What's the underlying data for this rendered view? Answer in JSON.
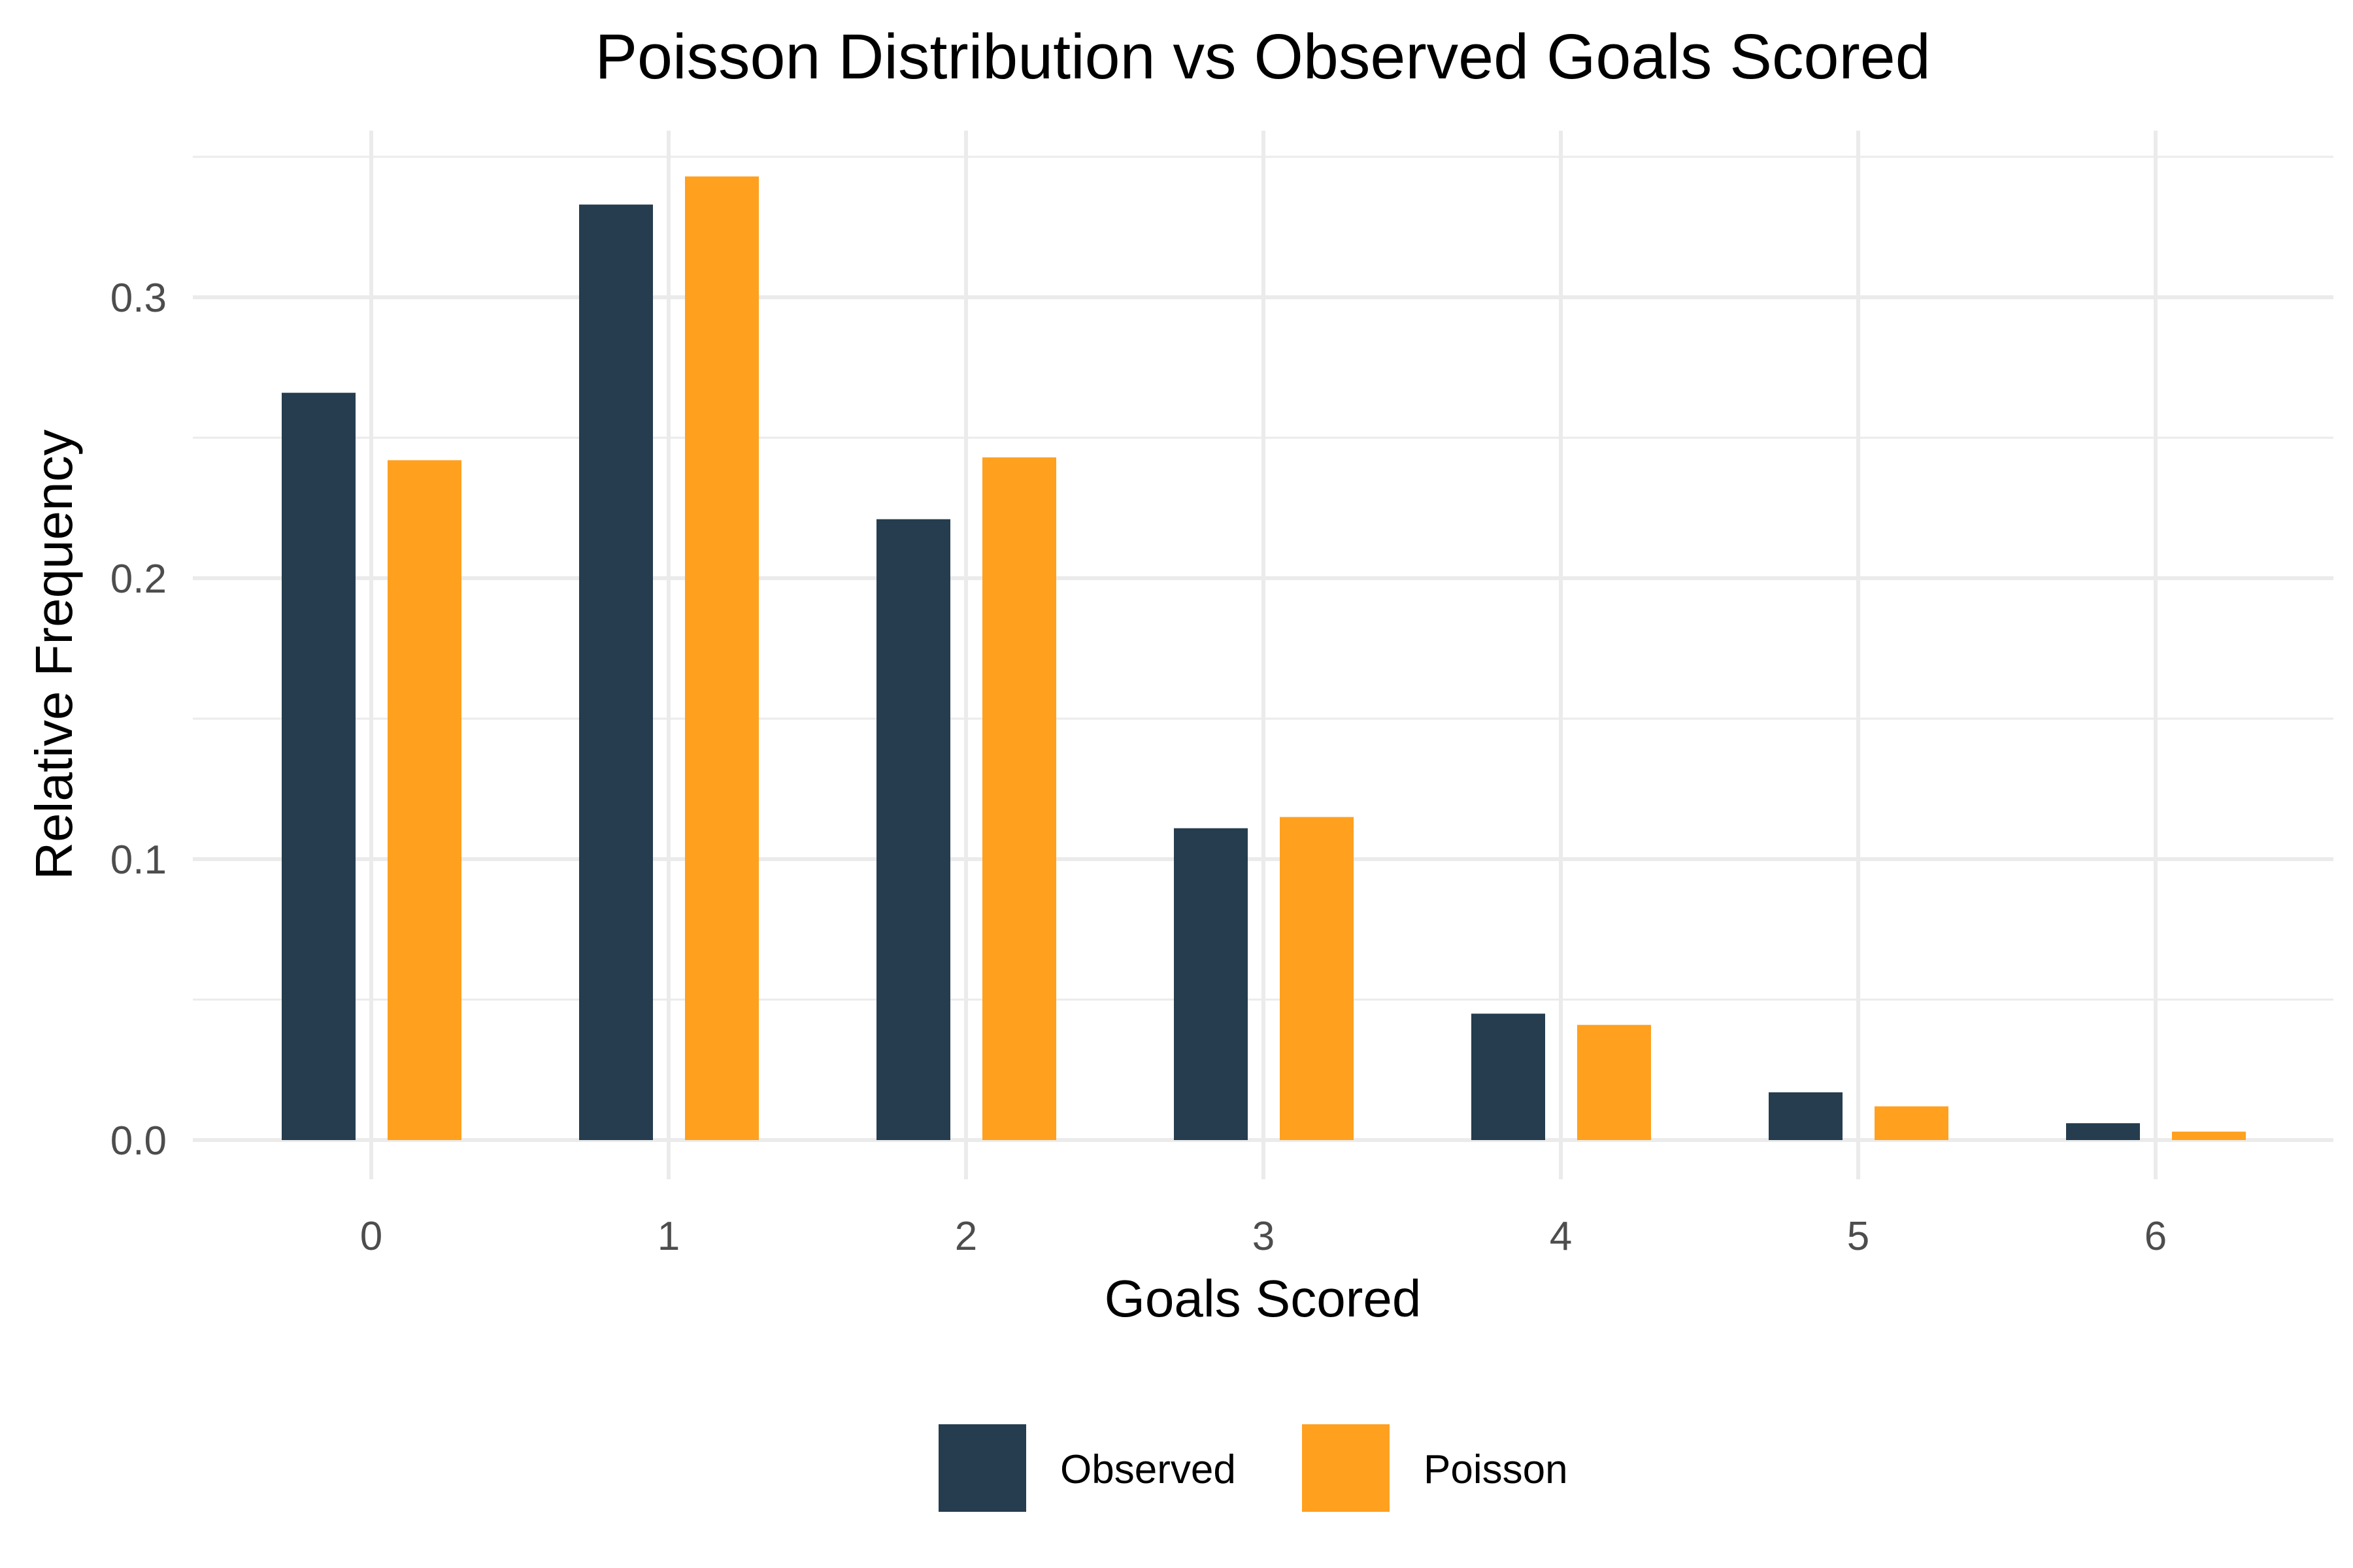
{
  "chart_data": {
    "type": "bar",
    "title": "Poisson Distribution vs Observed Goals Scored",
    "xlabel": "Goals Scored",
    "ylabel": "Relative Frequency",
    "categories": [
      "0",
      "1",
      "2",
      "3",
      "4",
      "5",
      "6"
    ],
    "series": [
      {
        "name": "Observed",
        "color": "#253D4E",
        "values": [
          0.266,
          0.333,
          0.221,
          0.111,
          0.045,
          0.017,
          0.006
        ]
      },
      {
        "name": "Poisson",
        "color": "#FFA01F",
        "values": [
          0.242,
          0.343,
          0.243,
          0.115,
          0.041,
          0.012,
          0.003
        ]
      }
    ],
    "ylim": [
      0,
      0.35
    ],
    "yticks": [
      "0.0",
      "0.1",
      "0.2",
      "0.3"
    ],
    "grid": true,
    "legend_position": "bottom"
  }
}
